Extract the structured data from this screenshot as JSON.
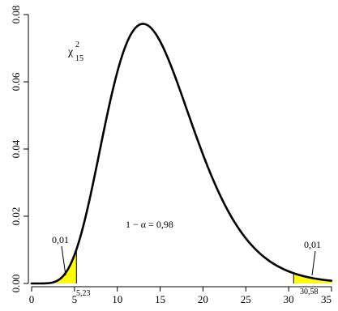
{
  "chart_data": {
    "type": "area",
    "distribution": "chi-square",
    "degrees_of_freedom": 15,
    "symbol": {
      "base": "χ",
      "superscript": "2",
      "subscript": "15"
    },
    "xlim": [
      0,
      35
    ],
    "ylim": [
      0,
      0.08
    ],
    "x_ticks": [
      {
        "value": 0,
        "label": "0"
      },
      {
        "value": 5,
        "label": "5"
      },
      {
        "value": 10,
        "label": "10"
      },
      {
        "value": 15,
        "label": "15"
      },
      {
        "value": 20,
        "label": "20"
      },
      {
        "value": 25,
        "label": "25"
      },
      {
        "value": 30,
        "label": "30"
      },
      {
        "value": 35,
        "label": "35"
      }
    ],
    "y_ticks": [
      {
        "value": 0,
        "label": "0.00"
      },
      {
        "value": 0.02,
        "label": "0.02"
      },
      {
        "value": 0.04,
        "label": "0.04"
      },
      {
        "value": 0.06,
        "label": "0.06"
      },
      {
        "value": 0.08,
        "label": "0.08"
      }
    ],
    "critical_values": [
      {
        "value": 5.23,
        "label": "5,23"
      },
      {
        "value": 30.58,
        "label": "30,58"
      }
    ],
    "tails": [
      {
        "side": "left",
        "label": "0,01",
        "color": "#ffff00"
      },
      {
        "side": "right",
        "label": "0,01",
        "color": "#ffff00"
      }
    ],
    "central_label": "1 − α = 0,98",
    "curve_color": "#000000",
    "grid": false
  }
}
